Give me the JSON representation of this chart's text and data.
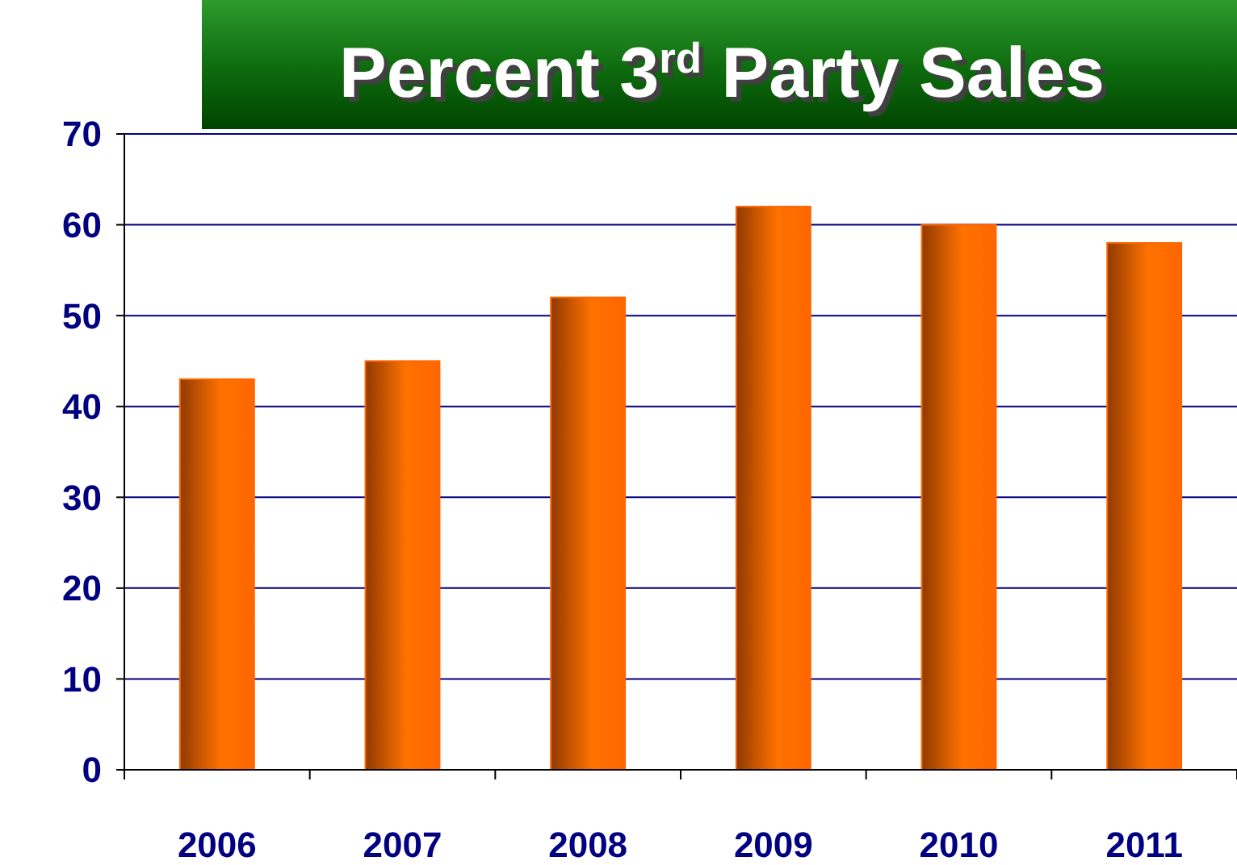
{
  "chart_data": {
    "type": "bar",
    "title": "Percent 3$^{rd}$ Party Sales",
    "categories": [
      "2006",
      "2007",
      "2008",
      "2009",
      "2010",
      "2011"
    ],
    "values": [
      43,
      45,
      52,
      62,
      60,
      58
    ],
    "color": "#ff6600",
    "ylim": [
      0,
      70
    ],
    "yticks": [
      0,
      10,
      20,
      30,
      40,
      50,
      60,
      70
    ],
    "grid": "y"
  }
}
